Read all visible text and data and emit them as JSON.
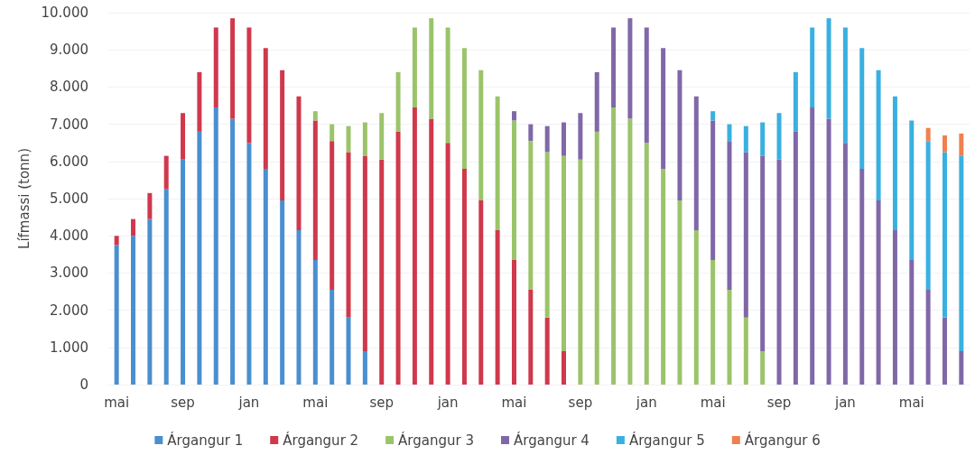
{
  "chart_data": {
    "type": "bar",
    "stacked": true,
    "ylabel": "Lífmassi (tonn)",
    "categories": [
      "mai",
      null,
      null,
      null,
      "sep",
      null,
      null,
      null,
      "jan",
      null,
      null,
      null,
      "mai",
      null,
      null,
      null,
      "sep",
      null,
      null,
      null,
      "jan",
      null,
      null,
      null,
      "mai",
      null,
      null,
      null,
      "sep",
      null,
      null,
      null,
      "jan",
      null,
      null,
      null,
      "mai",
      null,
      null,
      null,
      "sep",
      null,
      null,
      null,
      "jan",
      null,
      null,
      null,
      "mai",
      null,
      null,
      null
    ],
    "ylim": [
      0,
      10000
    ],
    "yticks": [
      0,
      {
        "value": 1000,
        "label": "1.000"
      },
      {
        "value": 2000,
        "label": "2.000"
      },
      {
        "value": 3000,
        "label": "3.000"
      },
      {
        "value": 4000,
        "label": "4.000"
      },
      {
        "value": 5000,
        "label": "5.000"
      },
      {
        "value": 6000,
        "label": "6.000"
      },
      {
        "value": 7000,
        "label": "7.000"
      },
      {
        "value": 8000,
        "label": "8.000"
      },
      {
        "value": 9000,
        "label": "9.000"
      },
      {
        "value": 10000,
        "label": "10.000"
      }
    ],
    "grid": "y",
    "legend": "bottom",
    "series": [
      {
        "name": "Árgangur 1",
        "color": "#4a8fd0",
        "values": [
          3750,
          4000,
          4450,
          5250,
          6050,
          6800,
          7450,
          7150,
          6500,
          5800,
          4950,
          4150,
          3350,
          2550,
          1800,
          900,
          null,
          null,
          null,
          null,
          null,
          null,
          null,
          null,
          null,
          null,
          null,
          null,
          null,
          null,
          null,
          null,
          null,
          null,
          null,
          null,
          null,
          null,
          null,
          null,
          null,
          null,
          null,
          null,
          null,
          null,
          null,
          null,
          null,
          null,
          null,
          null
        ]
      },
      {
        "name": "Árgangur 2",
        "color": "#d0384c",
        "values": [
          250,
          450,
          700,
          900,
          1250,
          1600,
          2150,
          2700,
          3100,
          3250,
          3500,
          3600,
          3750,
          4000,
          4450,
          5250,
          6050,
          6800,
          7450,
          7150,
          6500,
          5800,
          4950,
          4150,
          3350,
          2550,
          1800,
          900,
          null,
          null,
          null,
          null,
          null,
          null,
          null,
          null,
          null,
          null,
          null,
          null,
          null,
          null,
          null,
          null,
          null,
          null,
          null,
          null,
          null,
          null,
          null,
          null
        ]
      },
      {
        "name": "Árgangur 3",
        "color": "#9bc46a",
        "values": [
          null,
          null,
          null,
          null,
          null,
          null,
          null,
          null,
          null,
          null,
          null,
          null,
          250,
          450,
          700,
          900,
          1250,
          1600,
          2150,
          2700,
          3100,
          3250,
          3500,
          3600,
          3750,
          4000,
          4450,
          5250,
          6050,
          6800,
          7450,
          7150,
          6500,
          5800,
          4950,
          4150,
          3350,
          2550,
          1800,
          900,
          null,
          null,
          null,
          null,
          null,
          null,
          null,
          null,
          null,
          null,
          null,
          null
        ]
      },
      {
        "name": "Árgangur 4",
        "color": "#8068a8",
        "values": [
          null,
          null,
          null,
          null,
          null,
          null,
          null,
          null,
          null,
          null,
          null,
          null,
          null,
          null,
          null,
          null,
          null,
          null,
          null,
          null,
          null,
          null,
          null,
          null,
          250,
          450,
          700,
          900,
          1250,
          1600,
          2150,
          2700,
          3100,
          3250,
          3500,
          3600,
          3750,
          4000,
          4450,
          5250,
          6050,
          6800,
          7450,
          7150,
          6500,
          5800,
          4950,
          4150,
          3350,
          2550,
          1800,
          900
        ]
      },
      {
        "name": "Árgangur 5",
        "color": "#3ab0e0",
        "values": [
          null,
          null,
          null,
          null,
          null,
          null,
          null,
          null,
          null,
          null,
          null,
          null,
          null,
          null,
          null,
          null,
          null,
          null,
          null,
          null,
          null,
          null,
          null,
          null,
          null,
          null,
          null,
          null,
          null,
          null,
          null,
          null,
          null,
          null,
          null,
          null,
          250,
          450,
          700,
          900,
          1250,
          1600,
          2150,
          2700,
          3100,
          3250,
          3500,
          3600,
          3750,
          4000,
          4450,
          5250
        ]
      },
      {
        "name": "Árgangur 6",
        "color": "#f08050",
        "values": [
          null,
          null,
          null,
          null,
          null,
          null,
          null,
          null,
          null,
          null,
          null,
          null,
          null,
          null,
          null,
          null,
          null,
          null,
          null,
          null,
          null,
          null,
          null,
          null,
          null,
          null,
          null,
          null,
          null,
          null,
          null,
          null,
          null,
          null,
          null,
          null,
          null,
          null,
          null,
          null,
          null,
          null,
          null,
          null,
          null,
          null,
          null,
          null,
          null,
          350,
          450,
          600
        ]
      }
    ]
  }
}
